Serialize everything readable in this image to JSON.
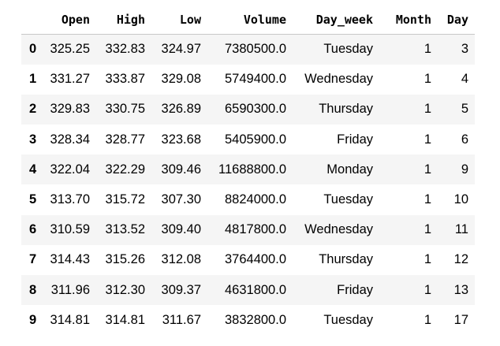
{
  "dataframe": {
    "columns": [
      "",
      "Open",
      "High",
      "Low",
      "Volume",
      "Day_week",
      "Month",
      "Day"
    ],
    "rows": [
      {
        "index": "0",
        "open": "325.25",
        "high": "332.83",
        "low": "324.97",
        "volume": "7380500.0",
        "day_week": "Tuesday",
        "month": "1",
        "day": "3"
      },
      {
        "index": "1",
        "open": "331.27",
        "high": "333.87",
        "low": "329.08",
        "volume": "5749400.0",
        "day_week": "Wednesday",
        "month": "1",
        "day": "4"
      },
      {
        "index": "2",
        "open": "329.83",
        "high": "330.75",
        "low": "326.89",
        "volume": "6590300.0",
        "day_week": "Thursday",
        "month": "1",
        "day": "5"
      },
      {
        "index": "3",
        "open": "328.34",
        "high": "328.77",
        "low": "323.68",
        "volume": "5405900.0",
        "day_week": "Friday",
        "month": "1",
        "day": "6"
      },
      {
        "index": "4",
        "open": "322.04",
        "high": "322.29",
        "low": "309.46",
        "volume": "11688800.0",
        "day_week": "Monday",
        "month": "1",
        "day": "9"
      },
      {
        "index": "5",
        "open": "313.70",
        "high": "315.72",
        "low": "307.30",
        "volume": "8824000.0",
        "day_week": "Tuesday",
        "month": "1",
        "day": "10"
      },
      {
        "index": "6",
        "open": "310.59",
        "high": "313.52",
        "low": "309.40",
        "volume": "4817800.0",
        "day_week": "Wednesday",
        "month": "1",
        "day": "11"
      },
      {
        "index": "7",
        "open": "314.43",
        "high": "315.26",
        "low": "312.08",
        "volume": "3764400.0",
        "day_week": "Thursday",
        "month": "1",
        "day": "12"
      },
      {
        "index": "8",
        "open": "311.96",
        "high": "312.30",
        "low": "309.37",
        "volume": "4631800.0",
        "day_week": "Friday",
        "month": "1",
        "day": "13"
      },
      {
        "index": "9",
        "open": "314.81",
        "high": "314.81",
        "low": "311.67",
        "volume": "3832800.0",
        "day_week": "Tuesday",
        "month": "1",
        "day": "17"
      }
    ]
  }
}
